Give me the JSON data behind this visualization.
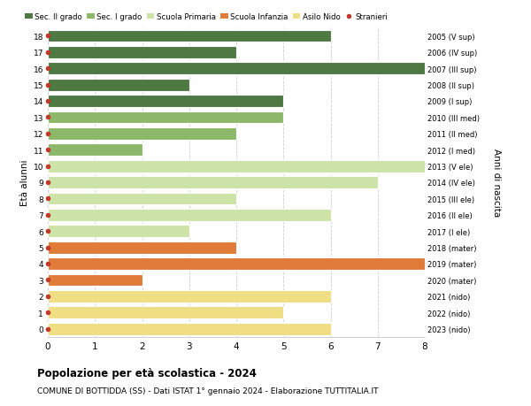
{
  "ages": [
    0,
    1,
    2,
    3,
    4,
    5,
    6,
    7,
    8,
    9,
    10,
    11,
    12,
    13,
    14,
    15,
    16,
    17,
    18
  ],
  "right_labels": [
    "2023 (nido)",
    "2022 (nido)",
    "2021 (nido)",
    "2020 (mater)",
    "2019 (mater)",
    "2018 (mater)",
    "2017 (I ele)",
    "2016 (II ele)",
    "2015 (III ele)",
    "2014 (IV ele)",
    "2013 (V ele)",
    "2012 (I med)",
    "2011 (II med)",
    "2010 (III med)",
    "2009 (I sup)",
    "2008 (II sup)",
    "2007 (III sup)",
    "2006 (IV sup)",
    "2005 (V sup)"
  ],
  "values": [
    6,
    5,
    6,
    2,
    8,
    4,
    3,
    6,
    4,
    7,
    8,
    2,
    4,
    5,
    5,
    3,
    8,
    4,
    6
  ],
  "colors": [
    "#f0de84",
    "#f0de84",
    "#f0de84",
    "#e07b3a",
    "#e07b3a",
    "#e07b3a",
    "#cde3a8",
    "#cde3a8",
    "#cde3a8",
    "#cde3a8",
    "#cde3a8",
    "#8db86a",
    "#8db86a",
    "#8db86a",
    "#4f7942",
    "#4f7942",
    "#4f7942",
    "#4f7942",
    "#4f7942"
  ],
  "legend_labels": [
    "Sec. II grado",
    "Sec. I grado",
    "Scuola Primaria",
    "Scuola Infanzia",
    "Asilo Nido",
    "Stranieri"
  ],
  "legend_colors": [
    "#4f7942",
    "#8db86a",
    "#cde3a8",
    "#e07b3a",
    "#f0de84",
    "#c0392b"
  ],
  "stranieri_color": "#c0392b",
  "ylabel": "Età alunni",
  "right_ylabel": "Anni di nascita",
  "title": "Popolazione per età scolastica - 2024",
  "subtitle": "COMUNE DI BOTTIDDA (SS) - Dati ISTAT 1° gennaio 2024 - Elaborazione TUTTITALIA.IT",
  "xlim": [
    0,
    8
  ],
  "background_color": "#ffffff",
  "bar_height": 0.75,
  "grid_color": "#cccccc"
}
